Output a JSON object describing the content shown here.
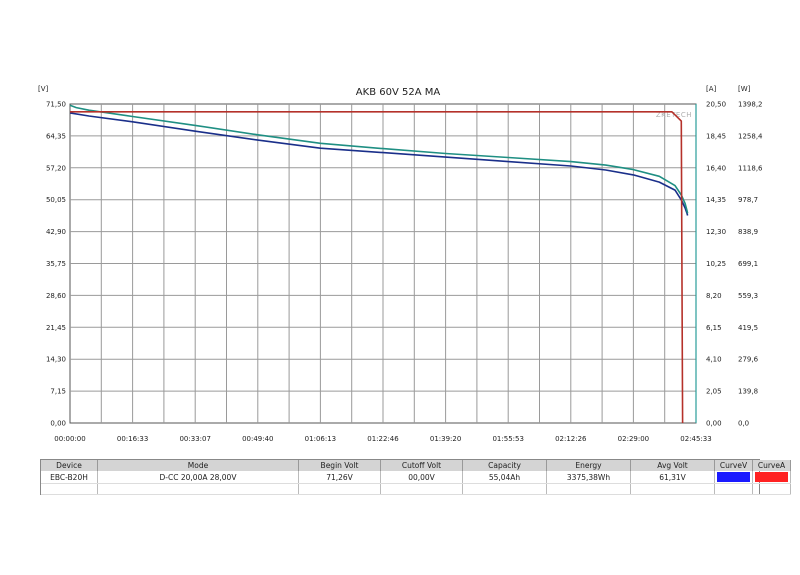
{
  "chart_data": {
    "type": "line",
    "title": "AKB 60V 52A MA",
    "watermark": "ZKETECH",
    "axes": {
      "voltage": {
        "unit": "[V]",
        "ylim": [
          0,
          71.5
        ],
        "ticks": [
          "71,50",
          "64,35",
          "57,20",
          "50,05",
          "42,90",
          "35,75",
          "28,60",
          "21,45",
          "14,30",
          "7,15",
          "0,00"
        ]
      },
      "current": {
        "unit": "[A]",
        "ylim": [
          0,
          20.5
        ],
        "ticks": [
          "20,50",
          "18,45",
          "16,40",
          "14,35",
          "12,30",
          "10,25",
          "8,20",
          "6,15",
          "4,10",
          "2,05",
          "0,00"
        ]
      },
      "power": {
        "unit": "[W]",
        "ylim": [
          0,
          1398.2
        ],
        "ticks": [
          "1398,2",
          "1258,4",
          "1118,6",
          "978,7",
          "838,9",
          "699,1",
          "559,3",
          "419,5",
          "279,6",
          "139,8",
          "0,0"
        ]
      },
      "time": {
        "xlim_seconds": [
          0,
          9933
        ],
        "ticks": [
          "00:00:00",
          "00:16:33",
          "00:33:07",
          "00:49:40",
          "01:06:13",
          "01:22:46",
          "01:39:20",
          "01:55:53",
          "02:12:26",
          "02:29:00",
          "02:45:33"
        ]
      }
    },
    "grid": true,
    "series": [
      {
        "axis": "voltage",
        "color": "#1a2f8a",
        "x": [
          0,
          300,
          993,
          1987,
          2980,
          3973,
          4966,
          5960,
          6953,
          7946,
          8500,
          8940,
          9350,
          9600,
          9700,
          9760,
          9790,
          9800
        ],
        "y": [
          69.5,
          68.8,
          67.5,
          65.4,
          63.4,
          61.6,
          60.6,
          59.6,
          58.6,
          57.6,
          56.7,
          55.6,
          54.0,
          52.2,
          50.0,
          48.2,
          47.0,
          46.5
        ]
      },
      {
        "axis": "voltage",
        "color": "#1f8f83",
        "x": [
          0,
          100,
          300,
          993,
          1987,
          2980,
          3973,
          4966,
          5960,
          6953,
          7946,
          8500,
          8940,
          9350,
          9600,
          9700,
          9760,
          9790,
          9800
        ],
        "y": [
          71.2,
          70.7,
          70.1,
          68.7,
          66.7,
          64.6,
          62.7,
          61.5,
          60.4,
          59.5,
          58.6,
          57.8,
          56.8,
          55.3,
          53.2,
          51.1,
          49.2,
          47.6,
          47.0
        ]
      },
      {
        "axis": "current",
        "color": "#b5312a",
        "x": [
          0,
          9400,
          9550,
          9700,
          9720
        ],
        "y": [
          20.0,
          20.0,
          20.0,
          19.4,
          0
        ]
      }
    ]
  },
  "info_table": {
    "headers": [
      "Device",
      "Mode",
      "Begin Volt",
      "Cutoff Volt",
      "Capacity",
      "Energy",
      "Avg Volt",
      "CurveV",
      "CurveA"
    ],
    "row": [
      "EBC-B20H",
      "D-CC  20,00A  28,00V",
      "71,26V",
      "00,00V",
      "55,04Ah",
      "3375,38Wh",
      "61,31V"
    ],
    "curve_colors": {
      "curve_v": "#1a1aff",
      "curve_a": "#ff2222"
    }
  }
}
